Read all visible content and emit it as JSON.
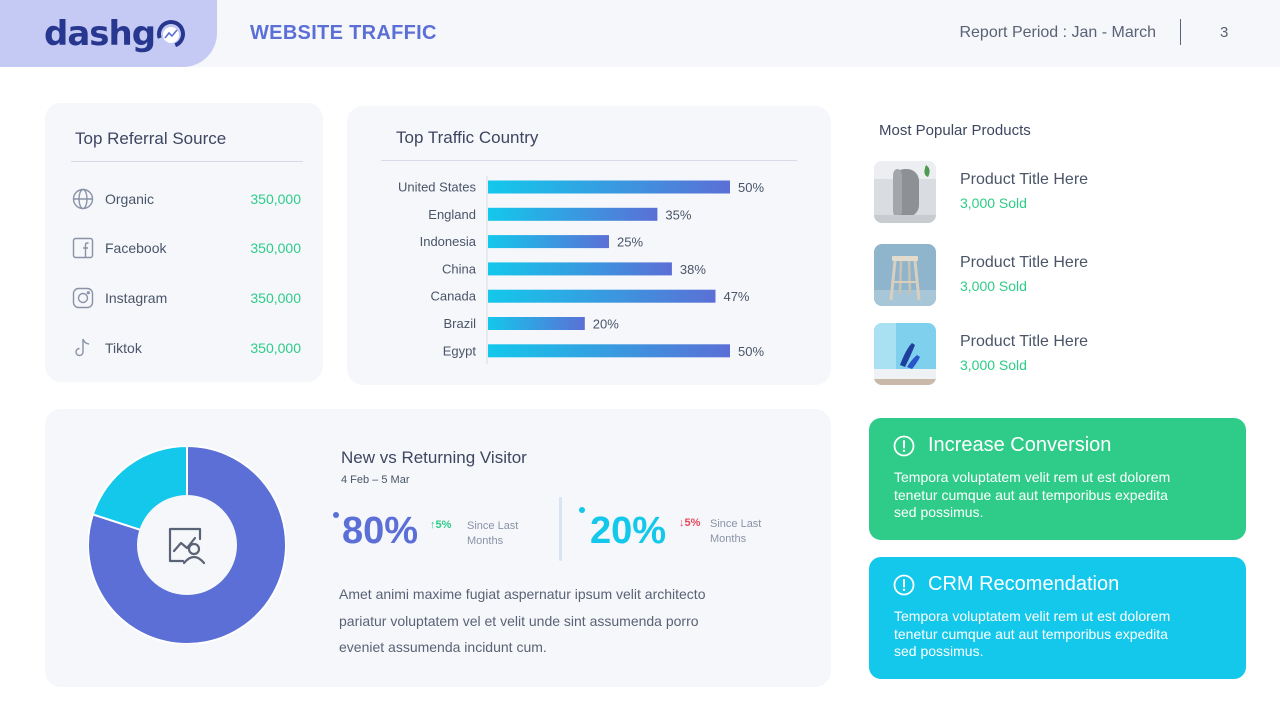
{
  "header": {
    "logo_text": "dashg",
    "title": "WEBSITE TRAFFIC",
    "report_period": "Report Period : Jan - March",
    "page_number": "3"
  },
  "referral": {
    "title": "Top Referral Source",
    "items": [
      {
        "label": "Organic",
        "value": "350,000",
        "icon": "globe-icon"
      },
      {
        "label": "Facebook",
        "value": "350,000",
        "icon": "facebook-icon"
      },
      {
        "label": "Instagram",
        "value": "350,000",
        "icon": "instagram-icon"
      },
      {
        "label": "Tiktok",
        "value": "350,000",
        "icon": "tiktok-icon"
      }
    ]
  },
  "chart_data": {
    "type": "bar",
    "orientation": "horizontal",
    "title": "Top Traffic Country",
    "categories": [
      "United States",
      "England",
      "Indonesia",
      "China",
      "Canada",
      "Brazil",
      "Egypt"
    ],
    "values": [
      50,
      35,
      25,
      38,
      47,
      20,
      50
    ],
    "value_labels": [
      "50%",
      "35%",
      "25%",
      "38%",
      "47%",
      "20%",
      "50%"
    ],
    "xlim": [
      0,
      50
    ],
    "grid": false,
    "colors": {
      "start": "#13c8eb",
      "end": "#5b6fd6"
    }
  },
  "products": {
    "title": "Most Popular Products",
    "items": [
      {
        "name": "Product Title Here",
        "sold": "3,000 Sold"
      },
      {
        "name": "Product Title Here",
        "sold": "3,000 Sold"
      },
      {
        "name": "Product Title Here",
        "sold": "3,000 Sold"
      }
    ]
  },
  "visitor": {
    "title": "New vs Returning  Visitor",
    "range": "4 Feb – 5 Mar",
    "new": {
      "value": "80%",
      "change": "5%",
      "direction": "up",
      "since": "Since Last Months",
      "since_line1": "Since Last",
      "since_line2": "Months",
      "color": "#5b6fd6",
      "fraction": 0.8
    },
    "returning": {
      "value": "20%",
      "change": "5%",
      "direction": "down",
      "since": "Since Last Months",
      "since_line1": "Since Last",
      "since_line2": "Months",
      "color": "#13c8eb",
      "fraction": 0.2
    },
    "body_line1": "Amet animi maxime fugiat aspernatur ipsum velit architecto",
    "body_line2": "pariatur voluptatem vel et velit unde sint assumenda porro",
    "body_line3": "eveniet assumenda incidunt cum.",
    "center_icon": "user-chart-icon"
  },
  "callouts": [
    {
      "title": "Increase Conversion",
      "line1": "Tempora voluptatem velit rem ut est dolorem",
      "line2": "tenetur cumque aut aut temporibus expedita",
      "line3": "sed possimus.",
      "color": "#2ecc88",
      "icon": "alert-circle-icon"
    },
    {
      "title": "CRM Recomendation",
      "line1": "Tempora voluptatem velit rem ut est dolorem",
      "line2": "tenetur cumque aut aut temporibus expedita",
      "line3": "sed possimus.",
      "color": "#13c8eb",
      "icon": "alert-circle-icon"
    }
  ]
}
